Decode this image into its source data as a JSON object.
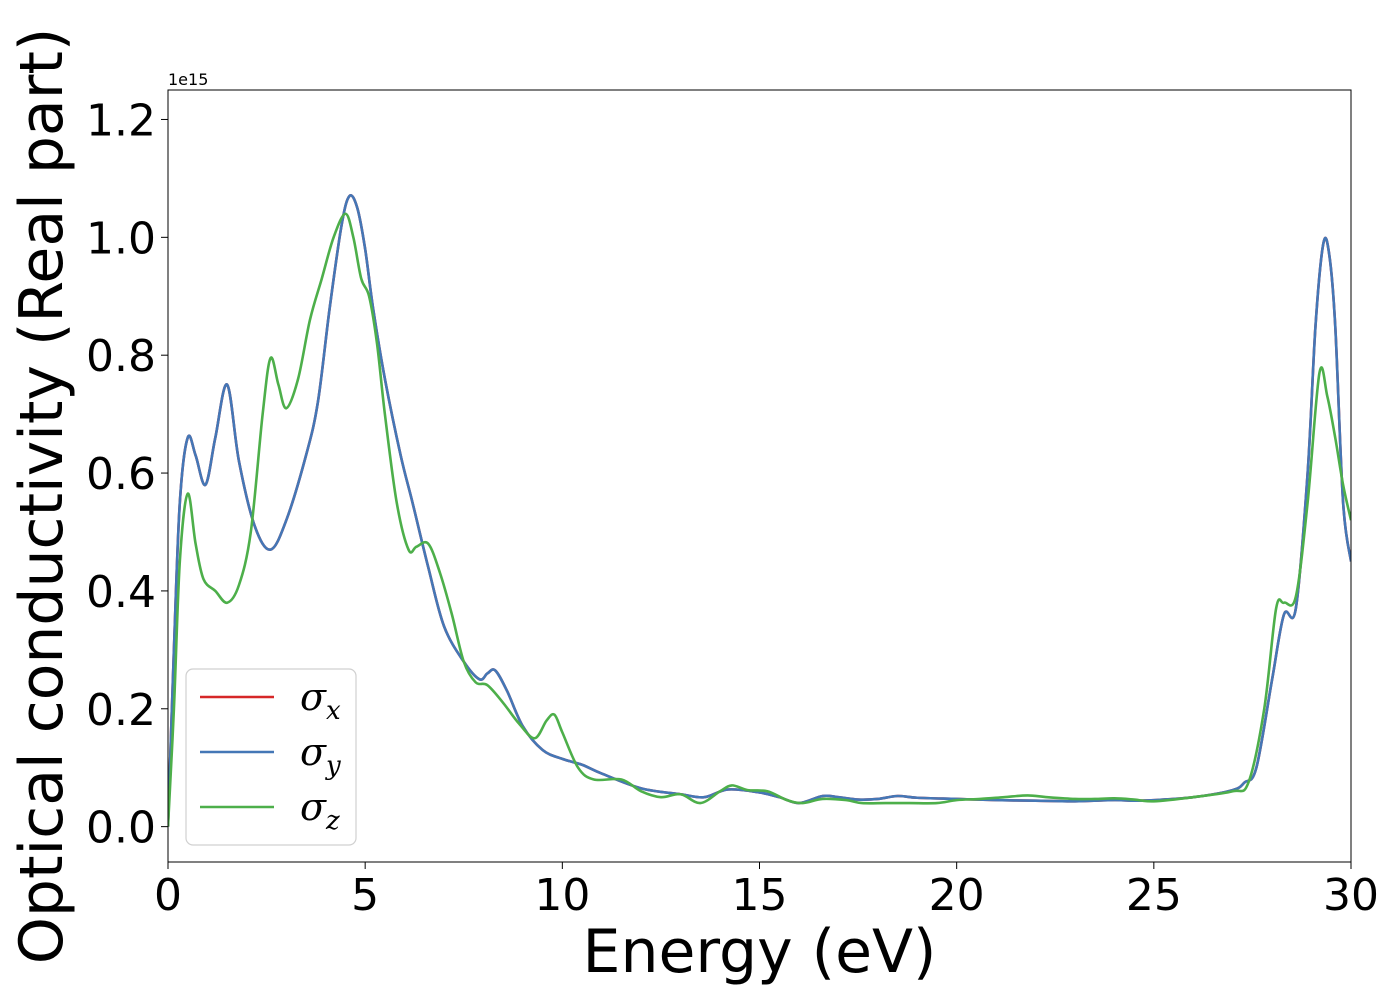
{
  "chart_data": {
    "type": "line",
    "title": "",
    "xlabel": "Energy (eV)",
    "ylabel": "Optical conductivity (Real part)",
    "y_offset_text": "1e15",
    "xlim": [
      0,
      30
    ],
    "ylim": [
      -0.06,
      1.25
    ],
    "x_ticks": [
      0,
      5,
      10,
      15,
      20,
      25,
      30
    ],
    "x_tick_labels": [
      "0",
      "5",
      "10",
      "15",
      "20",
      "25",
      "30"
    ],
    "y_ticks": [
      0.0,
      0.2,
      0.4,
      0.6,
      0.8,
      1.0,
      1.2
    ],
    "y_tick_labels": [
      "0.0",
      "0.2",
      "0.4",
      "0.6",
      "0.8",
      "1.0",
      "1.2"
    ],
    "grid": false,
    "legend_position": "lower-left",
    "series": [
      {
        "name": "σx",
        "color": "#d62728",
        "x": [
          0,
          0.15,
          0.3,
          0.5,
          0.7,
          0.95,
          1.2,
          1.5,
          1.8,
          2.2,
          2.6,
          3.0,
          3.5,
          3.8,
          4.1,
          4.4,
          4.6,
          4.8,
          5.0,
          5.2,
          5.5,
          5.9,
          6.2,
          6.6,
          7.0,
          7.5,
          7.9,
          8.1,
          8.3,
          8.6,
          9.0,
          9.5,
          10.0,
          10.5,
          11.0,
          12.0,
          13.0,
          13.6,
          14.2,
          15.0,
          15.5,
          16.0,
          16.6,
          17.0,
          17.5,
          18.0,
          18.5,
          19.0,
          20.0,
          21.0,
          22.0,
          23.0,
          24.0,
          24.5,
          25.0,
          26.0,
          27.0,
          27.3,
          27.6,
          28.0,
          28.3,
          28.6,
          28.9,
          29.1,
          29.3,
          29.45,
          29.6,
          29.8,
          30.0
        ],
        "y": [
          0.0,
          0.3,
          0.55,
          0.66,
          0.63,
          0.58,
          0.66,
          0.75,
          0.62,
          0.51,
          0.47,
          0.52,
          0.63,
          0.72,
          0.88,
          1.02,
          1.07,
          1.05,
          0.98,
          0.88,
          0.76,
          0.63,
          0.55,
          0.44,
          0.34,
          0.28,
          0.25,
          0.26,
          0.265,
          0.23,
          0.17,
          0.13,
          0.115,
          0.105,
          0.09,
          0.065,
          0.055,
          0.05,
          0.063,
          0.058,
          0.05,
          0.04,
          0.052,
          0.05,
          0.046,
          0.047,
          0.052,
          0.049,
          0.047,
          0.045,
          0.044,
          0.043,
          0.045,
          0.044,
          0.045,
          0.05,
          0.062,
          0.075,
          0.1,
          0.25,
          0.36,
          0.37,
          0.6,
          0.85,
          0.99,
          0.97,
          0.85,
          0.55,
          0.45
        ]
      },
      {
        "name": "σy",
        "color": "#4477b6",
        "x": [
          0,
          0.15,
          0.3,
          0.5,
          0.7,
          0.95,
          1.2,
          1.5,
          1.8,
          2.2,
          2.6,
          3.0,
          3.5,
          3.8,
          4.1,
          4.4,
          4.6,
          4.8,
          5.0,
          5.2,
          5.5,
          5.9,
          6.2,
          6.6,
          7.0,
          7.5,
          7.9,
          8.1,
          8.3,
          8.6,
          9.0,
          9.5,
          10.0,
          10.5,
          11.0,
          12.0,
          13.0,
          13.6,
          14.2,
          15.0,
          15.5,
          16.0,
          16.6,
          17.0,
          17.5,
          18.0,
          18.5,
          19.0,
          20.0,
          21.0,
          22.0,
          23.0,
          24.0,
          24.5,
          25.0,
          26.0,
          27.0,
          27.3,
          27.6,
          28.0,
          28.3,
          28.6,
          28.9,
          29.1,
          29.3,
          29.45,
          29.6,
          29.8,
          30.0
        ],
        "y": [
          0.0,
          0.3,
          0.55,
          0.66,
          0.63,
          0.58,
          0.66,
          0.75,
          0.62,
          0.51,
          0.47,
          0.52,
          0.63,
          0.72,
          0.88,
          1.02,
          1.07,
          1.05,
          0.98,
          0.88,
          0.76,
          0.63,
          0.55,
          0.44,
          0.34,
          0.28,
          0.25,
          0.26,
          0.265,
          0.23,
          0.17,
          0.13,
          0.115,
          0.105,
          0.09,
          0.065,
          0.055,
          0.05,
          0.063,
          0.058,
          0.05,
          0.04,
          0.052,
          0.05,
          0.046,
          0.047,
          0.052,
          0.049,
          0.047,
          0.045,
          0.044,
          0.043,
          0.045,
          0.044,
          0.045,
          0.05,
          0.062,
          0.075,
          0.1,
          0.25,
          0.36,
          0.37,
          0.6,
          0.85,
          0.99,
          0.97,
          0.85,
          0.55,
          0.45
        ]
      },
      {
        "name": "σz",
        "color": "#4daf4a",
        "x": [
          0,
          0.15,
          0.3,
          0.5,
          0.7,
          0.9,
          1.2,
          1.5,
          1.8,
          2.1,
          2.4,
          2.6,
          2.8,
          3.0,
          3.3,
          3.6,
          3.9,
          4.2,
          4.5,
          4.7,
          4.9,
          5.1,
          5.3,
          5.5,
          5.8,
          6.1,
          6.3,
          6.6,
          6.9,
          7.2,
          7.5,
          7.8,
          8.1,
          8.5,
          8.9,
          9.3,
          9.6,
          9.8,
          10.0,
          10.4,
          10.8,
          11.5,
          12.0,
          12.5,
          13.0,
          13.5,
          14.0,
          14.3,
          14.7,
          15.2,
          15.7,
          16.1,
          16.6,
          17.2,
          17.6,
          18.2,
          18.8,
          19.5,
          20.0,
          20.6,
          21.2,
          21.8,
          22.3,
          23.0,
          23.5,
          24.0,
          24.5,
          25.0,
          26.0,
          27.0,
          27.4,
          27.8,
          28.1,
          28.3,
          28.6,
          28.9,
          29.2,
          29.4,
          29.6,
          29.8,
          30.0
        ],
        "y": [
          0.0,
          0.2,
          0.45,
          0.565,
          0.48,
          0.42,
          0.4,
          0.38,
          0.41,
          0.5,
          0.7,
          0.795,
          0.75,
          0.71,
          0.76,
          0.86,
          0.93,
          1.0,
          1.04,
          1.0,
          0.93,
          0.9,
          0.82,
          0.7,
          0.55,
          0.47,
          0.475,
          0.48,
          0.43,
          0.36,
          0.28,
          0.245,
          0.24,
          0.21,
          0.175,
          0.15,
          0.18,
          0.19,
          0.16,
          0.1,
          0.08,
          0.08,
          0.06,
          0.05,
          0.055,
          0.04,
          0.06,
          0.07,
          0.062,
          0.06,
          0.045,
          0.04,
          0.047,
          0.045,
          0.04,
          0.04,
          0.04,
          0.04,
          0.045,
          0.047,
          0.05,
          0.053,
          0.05,
          0.047,
          0.047,
          0.048,
          0.046,
          0.043,
          0.05,
          0.06,
          0.075,
          0.2,
          0.37,
          0.38,
          0.39,
          0.55,
          0.77,
          0.73,
          0.66,
          0.58,
          0.52
        ]
      }
    ]
  }
}
